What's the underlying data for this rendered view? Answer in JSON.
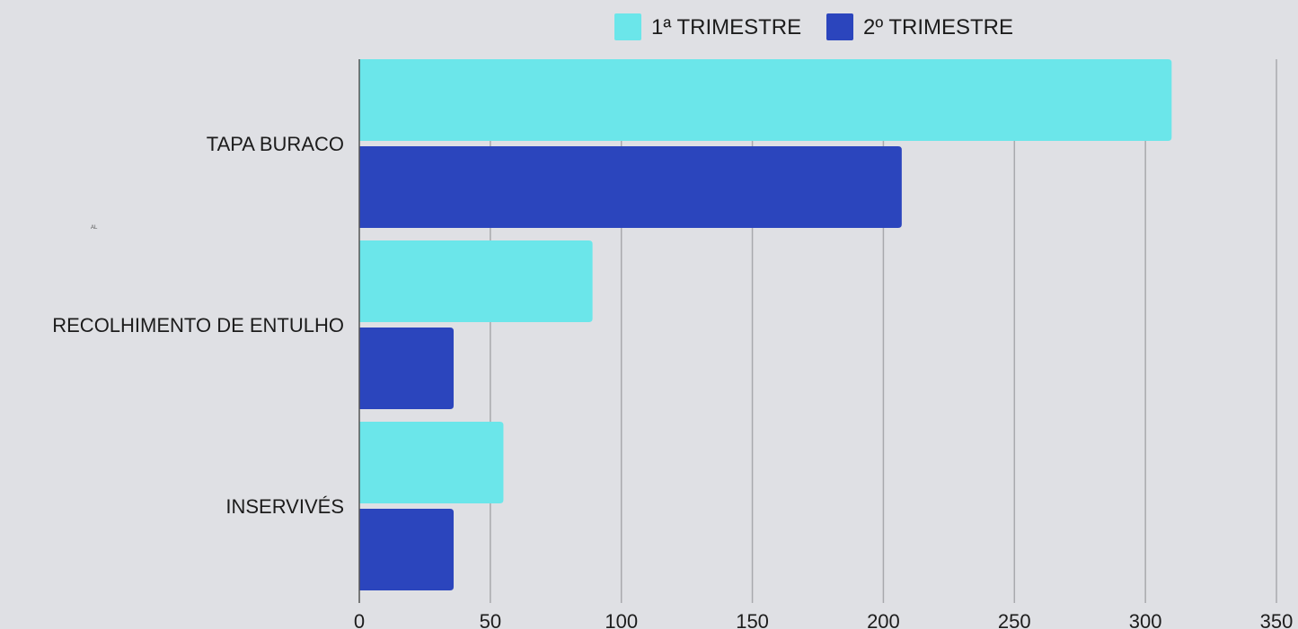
{
  "tiny_mark": "AL",
  "chart_data": {
    "type": "bar",
    "orientation": "horizontal",
    "categories": [
      "TAPA BURACO",
      "RECOLHIMENTO DE ENTULHO",
      "INSERVIVÉS"
    ],
    "series": [
      {
        "name": "1ª TRIMESTRE",
        "values": [
          310,
          89,
          55
        ],
        "color": "#6be6ea"
      },
      {
        "name": "2º TRIMESTRE",
        "values": [
          207,
          36,
          36
        ],
        "color": "#2b45bd"
      }
    ],
    "xlim": [
      0,
      350
    ],
    "xticks": [
      "0",
      "50",
      "100",
      "150",
      "200",
      "250",
      "300",
      "350"
    ],
    "grid": true,
    "legend": "top-center",
    "title": "",
    "xlabel": "",
    "ylabel": ""
  }
}
